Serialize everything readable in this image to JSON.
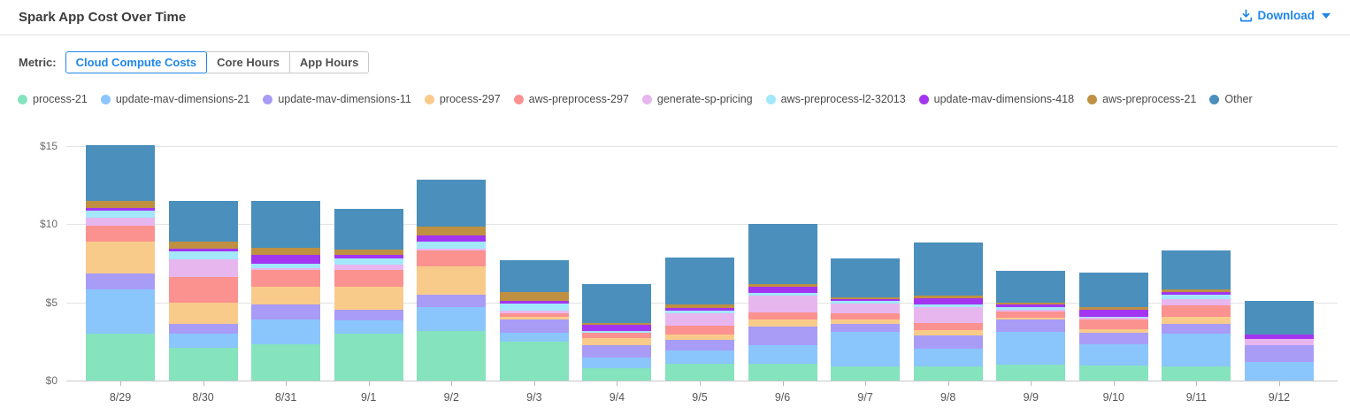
{
  "header": {
    "title": "Spark App Cost Over Time",
    "download_label": "Download"
  },
  "controls": {
    "metric_label": "Metric:",
    "options": [
      {
        "label": "Cloud Compute Costs",
        "selected": true
      },
      {
        "label": "Core Hours",
        "selected": false
      },
      {
        "label": "App Hours",
        "selected": false
      }
    ]
  },
  "colors": {
    "accent_blue": "#1f86ea",
    "selected_border": "#2186eb",
    "gridline": "#e3e3e3",
    "axis_line": "#c8c8c8",
    "axis_text": "#6b6b6b"
  },
  "chart_data": {
    "type": "bar",
    "stacked": true,
    "title": "Spark App Cost Over Time",
    "xlabel": "",
    "ylabel": "",
    "ylim": [
      0,
      15
    ],
    "y_ticks": [
      "$0",
      "$5",
      "$10",
      "$15"
    ],
    "y_tick_values": [
      0,
      5,
      10,
      15
    ],
    "grid": true,
    "legend_position": "top",
    "categories": [
      "8/29",
      "8/30",
      "8/31",
      "9/1",
      "9/2",
      "9/3",
      "9/4",
      "9/5",
      "9/6",
      "9/7",
      "9/8",
      "9/9",
      "9/10",
      "9/11",
      "9/12"
    ],
    "series": [
      {
        "name": "process-21",
        "color": "#85e3bd",
        "values": [
          3.0,
          2.1,
          2.3,
          3.0,
          3.15,
          2.5,
          0.8,
          1.05,
          1.1,
          0.9,
          0.9,
          1.0,
          0.95,
          0.9,
          0.0
        ]
      },
      {
        "name": "update-mav-dimensions-21",
        "color": "#8ac6fb",
        "values": [
          2.85,
          0.9,
          1.6,
          0.85,
          1.55,
          0.55,
          0.65,
          0.9,
          1.15,
          2.2,
          1.15,
          2.1,
          1.35,
          2.1,
          1.2
        ]
      },
      {
        "name": "update-mav-dimensions-11",
        "color": "#a89cf7",
        "values": [
          1.0,
          0.6,
          0.95,
          0.7,
          0.8,
          0.85,
          0.8,
          0.65,
          1.2,
          0.5,
          0.85,
          0.8,
          0.75,
          0.65,
          1.05
        ]
      },
      {
        "name": "process-297",
        "color": "#f9cb8b",
        "values": [
          2.05,
          1.4,
          1.15,
          1.45,
          1.8,
          0.2,
          0.45,
          0.35,
          0.45,
          0.3,
          0.3,
          0.1,
          0.25,
          0.45,
          0.0
        ]
      },
      {
        "name": "aws-preprocess-297",
        "color": "#fb928f",
        "values": [
          1.0,
          1.65,
          1.05,
          1.1,
          1.05,
          0.2,
          0.35,
          0.55,
          0.45,
          0.4,
          0.5,
          0.4,
          0.6,
          0.7,
          0.0
        ]
      },
      {
        "name": "generate-sp-pricing",
        "color": "#e8b6ef",
        "values": [
          0.5,
          1.1,
          0.15,
          0.3,
          0.1,
          0.15,
          0.0,
          0.8,
          1.1,
          0.65,
          1.0,
          0.15,
          0.1,
          0.4,
          0.4
        ]
      },
      {
        "name": "aws-preprocess-l2-32013",
        "color": "#a3e7fa",
        "values": [
          0.45,
          0.5,
          0.3,
          0.4,
          0.45,
          0.5,
          0.15,
          0.2,
          0.15,
          0.15,
          0.15,
          0.15,
          0.1,
          0.3,
          0.0
        ]
      },
      {
        "name": "update-mav-dimensions-418",
        "color": "#a335f1",
        "values": [
          0.2,
          0.2,
          0.55,
          0.25,
          0.4,
          0.15,
          0.35,
          0.15,
          0.4,
          0.1,
          0.4,
          0.15,
          0.45,
          0.15,
          0.3
        ]
      },
      {
        "name": "aws-preprocess-21",
        "color": "#bf9041",
        "values": [
          0.45,
          0.45,
          0.45,
          0.35,
          0.55,
          0.55,
          0.15,
          0.2,
          0.15,
          0.15,
          0.2,
          0.15,
          0.15,
          0.2,
          0.0
        ]
      },
      {
        "name": "Other",
        "color": "#4b8fbc",
        "values": [
          3.55,
          2.6,
          3.0,
          2.6,
          3.0,
          2.05,
          2.5,
          3.0,
          3.85,
          2.45,
          3.4,
          2.05,
          2.2,
          2.45,
          2.15
        ]
      }
    ]
  }
}
